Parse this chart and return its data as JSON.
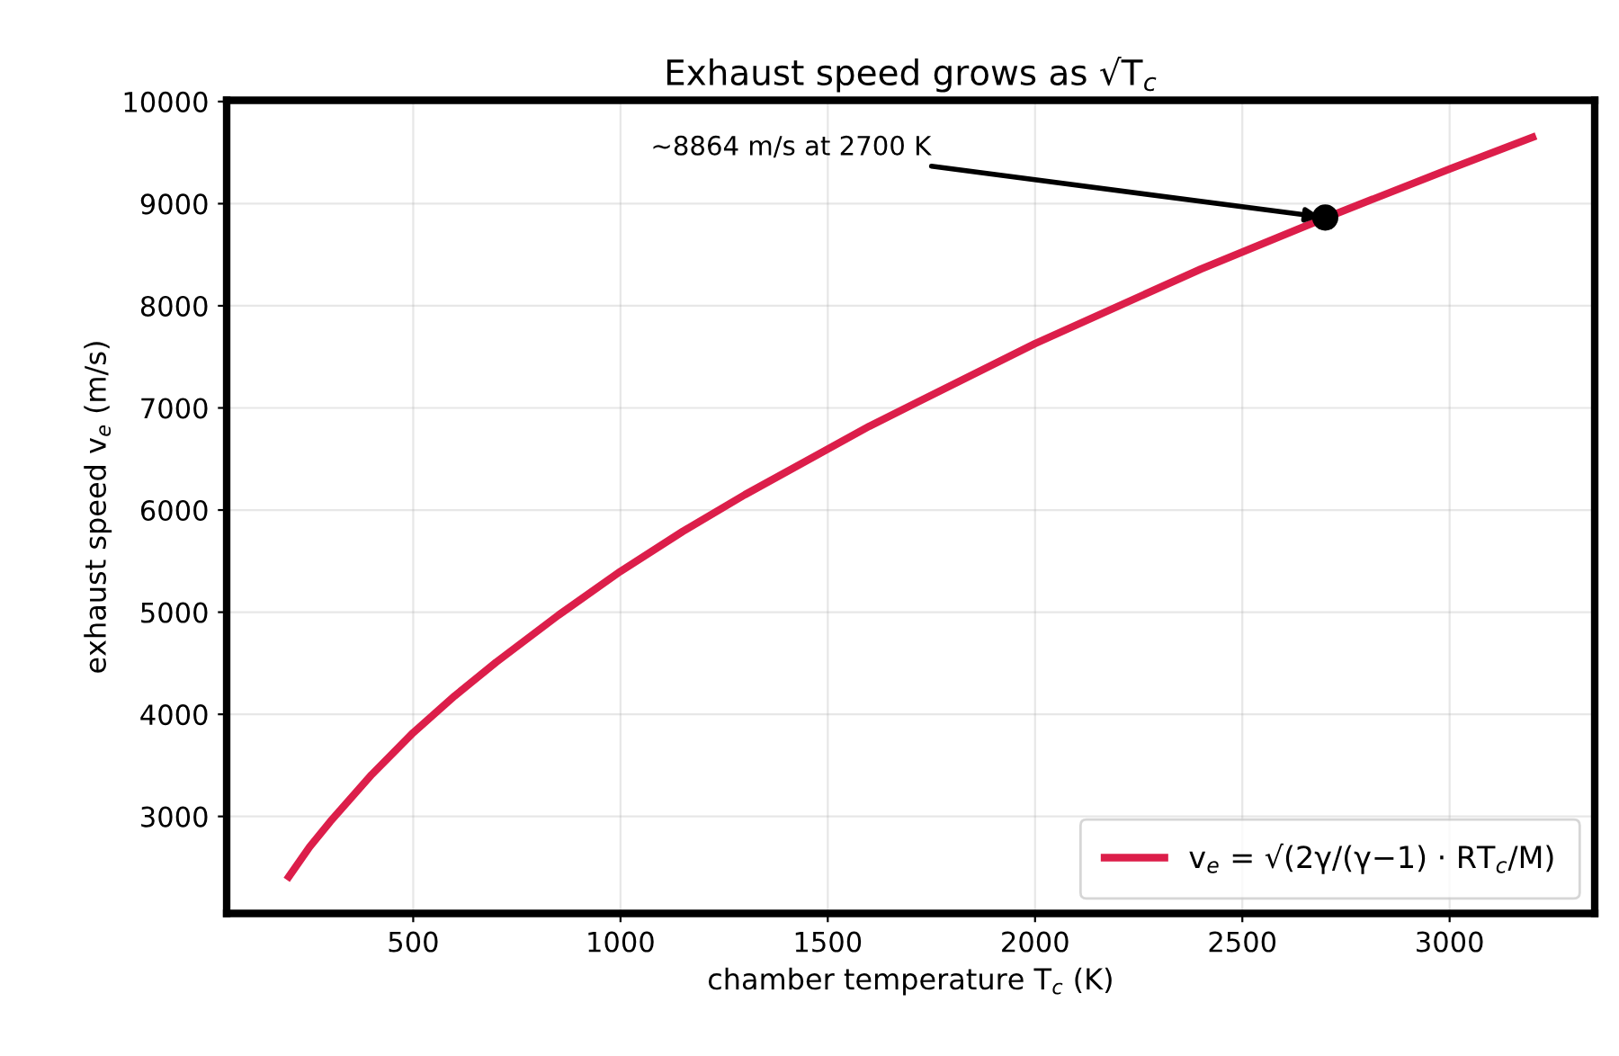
{
  "chart_data": {
    "type": "line",
    "title": "Exhaust speed grows as √T$_{c}$",
    "xlabel": "chamber temperature T$_{c}$ (K)",
    "ylabel": "exhaust speed v$_{e}$ (m/s)",
    "series": [
      {
        "name": "v$_{e}$ = √(2γ/(γ−1) · RT$_{c}$/M)",
        "color": "#dc1e4a",
        "x": [
          200,
          250,
          300,
          400,
          500,
          600,
          700,
          850,
          1000,
          1150,
          1300,
          1600,
          2000,
          2400,
          2700,
          3000,
          3200
        ],
        "values": [
          2410,
          2700,
          2950,
          3410,
          3820,
          4180,
          4510,
          4970,
          5400,
          5790,
          6150,
          6820,
          7630,
          8360,
          8860,
          9340,
          9650
        ]
      },
      {
        "type": "scatter",
        "color": "#000000",
        "marker": "circle",
        "x": [
          2700
        ],
        "values": [
          8864
        ]
      }
    ],
    "annotations": [
      {
        "text": "~8864 m/s at 2700 K",
        "x": 2700,
        "y": 8864
      }
    ],
    "xlim": [
      50,
      3350
    ],
    "ylim": [
      2050,
      10012
    ],
    "xticks": [
      500,
      1000,
      1500,
      2000,
      2500,
      3000
    ],
    "yticks": [
      3000,
      4000,
      5000,
      6000,
      7000,
      8000,
      9000,
      10000
    ],
    "grid": true,
    "legend": "lower right"
  }
}
